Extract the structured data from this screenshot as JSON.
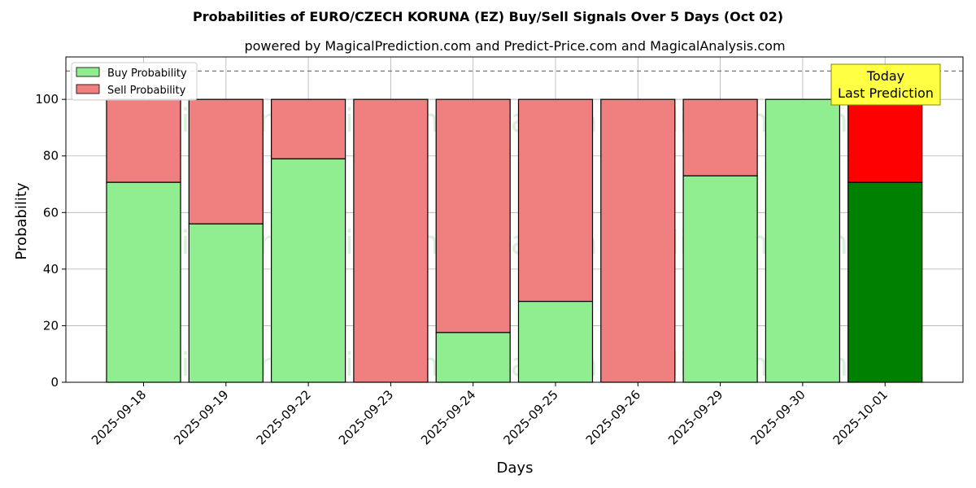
{
  "chart_data": {
    "type": "bar",
    "stacked": true,
    "title": "Probabilities of EURO/CZECH KORUNA (EZ) Buy/Sell Signals Over 5 Days (Oct 02)",
    "subtitle": "powered by MagicalPrediction.com and Predict-Price.com and MagicalAnalysis.com",
    "xlabel": "Days",
    "ylabel": "Probability",
    "ylim": [
      0,
      115
    ],
    "yticks": [
      0,
      20,
      40,
      60,
      80,
      100
    ],
    "reference_line": 110,
    "grid": true,
    "legend_position": "top-left",
    "categories": [
      "2025-09-18",
      "2025-09-19",
      "2025-09-22",
      "2025-09-23",
      "2025-09-24",
      "2025-09-25",
      "2025-09-26",
      "2025-09-29",
      "2025-09-30",
      "2025-10-01"
    ],
    "series": [
      {
        "name": "Buy Probability",
        "color": "#90ee90",
        "highlight_color": "#008000",
        "values": [
          70.7,
          56.0,
          79.0,
          0,
          17.6,
          28.6,
          0,
          73.0,
          100,
          70.7
        ]
      },
      {
        "name": "Sell Probability",
        "color": "#f08080",
        "highlight_color": "#ff0000",
        "values": [
          29.3,
          44.0,
          21.0,
          100,
          82.4,
          71.4,
          100,
          27.0,
          0,
          29.3
        ]
      }
    ],
    "highlight_index": 9,
    "annotation": {
      "line1": "Today",
      "line2": "Last Prediction",
      "background": "#ffff44"
    },
    "watermarks": [
      "MagicalAnalysis.com",
      "MagicalPrediction.com"
    ]
  }
}
